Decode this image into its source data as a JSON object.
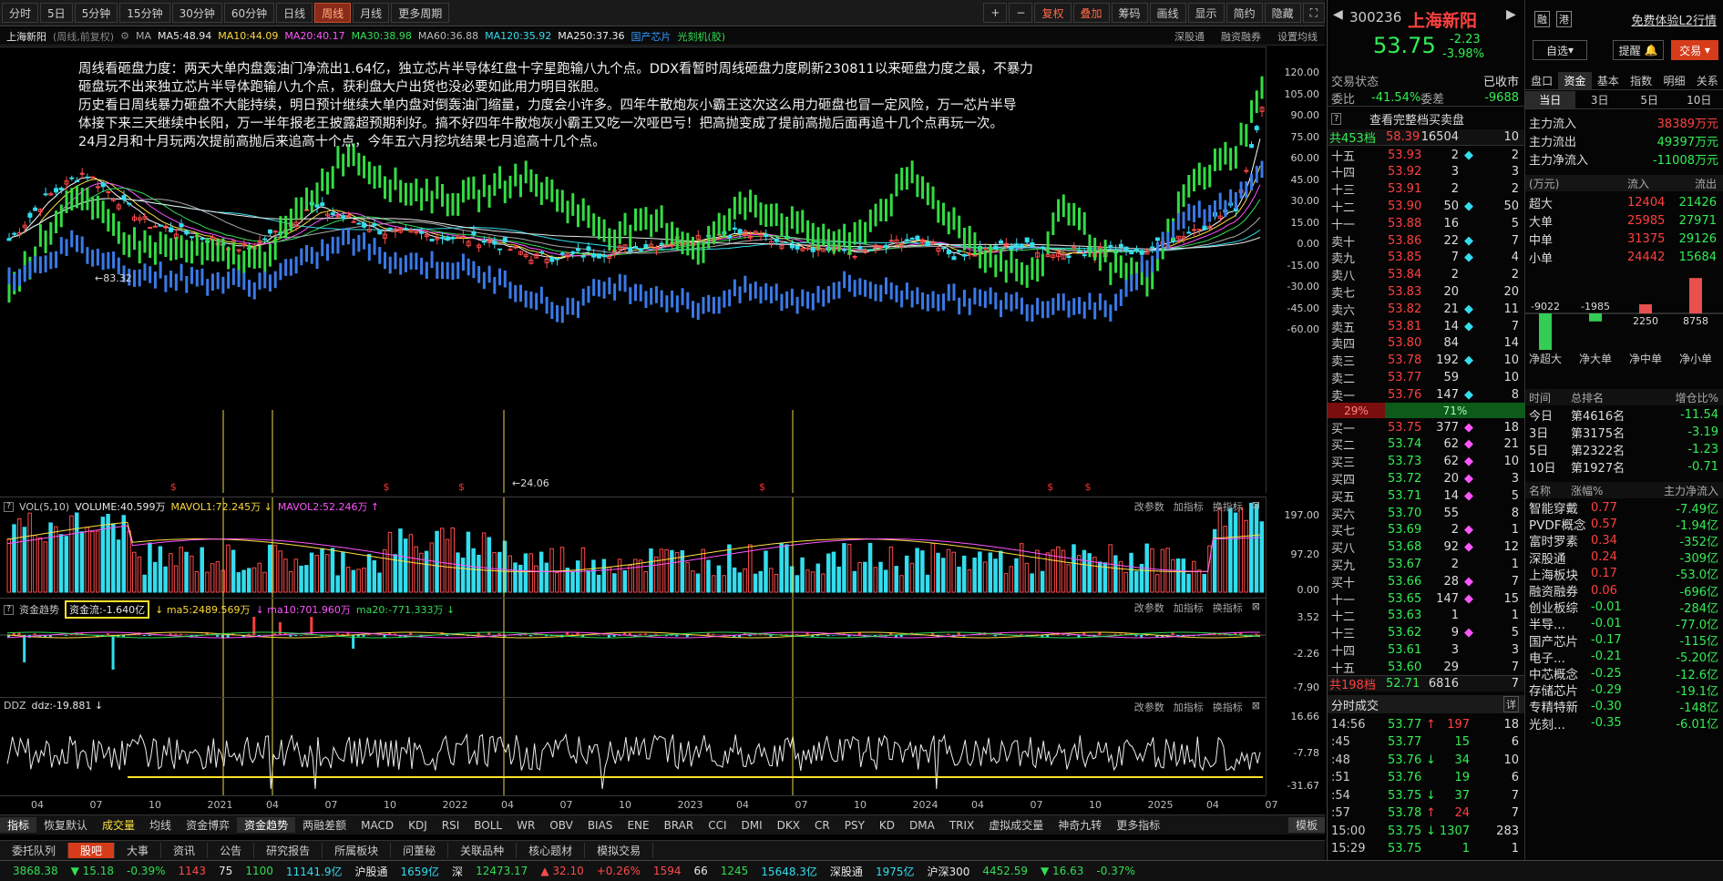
{
  "toolbar": {
    "periods": [
      "分时",
      "5日",
      "5分钟",
      "15分钟",
      "30分钟",
      "60分钟",
      "日线",
      "周线",
      "月线",
      "更多周期"
    ],
    "active": "周线",
    "right": [
      "+",
      "−",
      "复权",
      "叠加",
      "筹码",
      "画线",
      "显示",
      "简约",
      "隐藏",
      "⛶"
    ],
    "active_right": [
      "复权",
      "叠加"
    ]
  },
  "info": {
    "name": "上海新阳",
    "mode": "(周线,前复权)",
    "ma": "MA",
    "ma5": "MA5:48.94",
    "ma10": "MA10:44.09",
    "ma20": "MA20:40.17",
    "ma30": "MA30:38.98",
    "ma60": "MA60:36.88",
    "ma120": "MA120:35.92",
    "ma250": "MA250:37.36",
    "tag1": "国产芯片",
    "tag2": "光刻机(胶)",
    "right": [
      "深股通",
      "融资融券",
      "设置均线"
    ]
  },
  "annotation": [
    "周线看砸盘力度：两天大单内盘轰油门净流出1.64亿，独立芯片半导体红盘十字星跑输八九个点。DDX看暂时周线砸盘力度刷新230811以来砸盘力度之最，不暴力",
    "砸盘玩不出来独立芯片半导体跑输八九个点，获利盘大户出货也没必要如此用力明目张胆。",
    "历史看日周线暴力砸盘不大能持续，明日预计继续大单内盘对倒轰油门缩量，力度会小许多。四年牛散炮灰小霸王这次这么用力砸盘也冒一定风险，万一芯片半导",
    "体接下来三天继续中长阳，万一半年报老王披露超预期利好。搞不好四年牛散炮灰小霸王又吃一次哑巴亏！把高抛变成了提前高抛后面再追十几个点再玩一次。",
    "24月2月和十月玩两次提前高抛后来追高十个点，今年五六月挖坑结果七月追高十几个点。"
  ],
  "main_axis": [
    "120.00",
    "105.00",
    "90.00",
    "75.00",
    "60.00",
    "45.00",
    "30.00",
    "15.00",
    "0.00",
    "-15.00",
    "-30.00",
    "-45.00",
    "-60.00"
  ],
  "marks": {
    "high": "83.32",
    "low": "24.06"
  },
  "vol": {
    "name": "VOL(5,10)",
    "volume": "VOLUME:40.599万",
    "mavol1": "MAVOL1:72.245万",
    "mavol2": "MAVOL2:52.246万",
    "axis": [
      "197.00",
      "97.20",
      "0.00"
    ]
  },
  "fund": {
    "name": "资金趋势",
    "flow": "资金流:-1.640亿",
    "ma5": "ma5:2489.569万",
    "ma10": "ma10:701.960万",
    "ma20": "ma20:-771.333万",
    "axis": [
      "3.52",
      "-2.26",
      "-7.90"
    ]
  },
  "ddz": {
    "name": "DDZ",
    "value": "ddz:-19.881",
    "axis": [
      "16.66",
      "-7.78",
      "-31.67"
    ]
  },
  "panel_btns": [
    "改参数",
    "加指标",
    "换指标"
  ],
  "xaxis": [
    "04",
    "07",
    "10",
    "2021",
    "04",
    "07",
    "10",
    "2022",
    "04",
    "07",
    "10",
    "2023",
    "04",
    "07",
    "10",
    "2024",
    "04",
    "07",
    "10",
    "2025",
    "04",
    "07"
  ],
  "ind_tabs": [
    "指标",
    "恢复默认",
    "成交量",
    "均线",
    "资金博弈",
    "资金趋势",
    "两融差额",
    "MACD",
    "KDJ",
    "RSI",
    "BOLL",
    "WR",
    "OBV",
    "BIAS",
    "ENE",
    "BRAR",
    "CCI",
    "DMI",
    "DKX",
    "CR",
    "PSY",
    "KD",
    "DMA",
    "TRIX",
    "虚拟成交量",
    "神奇九转",
    "更多指标",
    "模板"
  ],
  "bottom_tabs": [
    "委托队列",
    "股吧",
    "大事",
    "资讯",
    "公告",
    "研究报告",
    "所属板块",
    "问董秘",
    "关联品种",
    "核心题材",
    "模拟交易"
  ],
  "status": {
    "sh": "3868.38",
    "sh_chg": "▼ 15.18",
    "sh_pct": "-0.39%",
    "n1": "1143",
    "n2": "75",
    "n3": "1100",
    "amt": "11141.9亿",
    "hgt": "沪股通",
    "hgt_v": "1659亿",
    "sz": "深",
    "sz_v": "12473.17",
    "sz_chg": "▲ 32.10",
    "sz_pct": "+0.26%",
    "n4": "1594",
    "n5": "66",
    "n6": "1245",
    "sz_amt": "15648.3亿",
    "sgt": "深股通",
    "sgt_v": "1975亿",
    "hs": "沪深300",
    "hs_v": "4452.59",
    "hs_chg": "▼ 16.63",
    "hs_pct": "-0.37%"
  },
  "stock": {
    "code": "300236",
    "name": "上海新阳",
    "price": "53.75",
    "chg": "-2.23",
    "pct": "-3.98%",
    "promo": "免费体验L2行情",
    "btns": [
      "融",
      "港"
    ],
    "zixuan": "自选",
    "remind": "提醒",
    "trade": "交易"
  },
  "trade_state": {
    "label": "交易状态",
    "value": "已收市",
    "wb": "委比",
    "wb_v": "-41.54%",
    "wc": "委差",
    "wc_v": "-9688"
  },
  "view_all": "查看完整档买卖盘",
  "sell_total": {
    "label": "共453档",
    "price": "58.39",
    "vol": "16504",
    "n": "10"
  },
  "asks": [
    [
      "十五",
      "53.93",
      "2",
      "2"
    ],
    [
      "十四",
      "53.92",
      "3",
      "3"
    ],
    [
      "十三",
      "53.91",
      "2",
      "2"
    ],
    [
      "十二",
      "53.90",
      "50",
      "50"
    ],
    [
      "十一",
      "53.88",
      "16",
      "5"
    ],
    [
      "卖十",
      "53.86",
      "22",
      "7"
    ],
    [
      "卖九",
      "53.85",
      "7",
      "4"
    ],
    [
      "卖八",
      "53.84",
      "2",
      "2"
    ],
    [
      "卖七",
      "53.83",
      "20",
      "20"
    ],
    [
      "卖六",
      "53.82",
      "21",
      "11"
    ],
    [
      "卖五",
      "53.81",
      "14",
      "7"
    ],
    [
      "卖四",
      "53.80",
      "84",
      "14"
    ],
    [
      "卖三",
      "53.78",
      "192",
      "10"
    ],
    [
      "卖二",
      "53.77",
      "59",
      "10"
    ],
    [
      "卖一",
      "53.76",
      "147",
      "8"
    ]
  ],
  "ratio": {
    "sell": "29%",
    "buy": "71%"
  },
  "bids": [
    [
      "买一",
      "53.75",
      "377",
      "18"
    ],
    [
      "买二",
      "53.74",
      "62",
      "21"
    ],
    [
      "买三",
      "53.73",
      "62",
      "10"
    ],
    [
      "买四",
      "53.72",
      "20",
      "3"
    ],
    [
      "买五",
      "53.71",
      "14",
      "5"
    ],
    [
      "买六",
      "53.70",
      "55",
      "8"
    ],
    [
      "买七",
      "53.69",
      "2",
      "1"
    ],
    [
      "买八",
      "53.68",
      "92",
      "12"
    ],
    [
      "买九",
      "53.67",
      "2",
      "1"
    ],
    [
      "买十",
      "53.66",
      "28",
      "7"
    ],
    [
      "十一",
      "53.65",
      "147",
      "15"
    ],
    [
      "十二",
      "53.63",
      "1",
      "1"
    ],
    [
      "十三",
      "53.62",
      "9",
      "5"
    ],
    [
      "十四",
      "53.61",
      "3",
      "3"
    ],
    [
      "十五",
      "53.60",
      "29",
      "7"
    ]
  ],
  "buy_total": {
    "label": "共198档",
    "price": "52.71",
    "vol": "6816",
    "n": "7"
  },
  "ticks_title": "分时成交",
  "ticks_btn": "详",
  "ticks": [
    [
      "14:56",
      "53.77",
      "197",
      "18",
      "up"
    ],
    [
      ":45",
      "53.77",
      "15",
      "6",
      ""
    ],
    [
      ":48",
      "53.76",
      "34",
      "10",
      "dn"
    ],
    [
      ":51",
      "53.76",
      "19",
      "6",
      ""
    ],
    [
      ":54",
      "53.75",
      "37",
      "7",
      "dn"
    ],
    [
      ":57",
      "53.78",
      "24",
      "7",
      "up"
    ],
    [
      "15:00",
      "53.75",
      "1307",
      "283",
      "dn"
    ],
    [
      "15:29",
      "53.75",
      "1",
      "1",
      ""
    ]
  ],
  "rtabs1": [
    "盘口",
    "资金",
    "基本",
    "指数",
    "明细",
    "关系"
  ],
  "rtabs2": [
    "当日",
    "3日",
    "5日",
    "10日"
  ],
  "flows": [
    [
      "主力流入",
      "38389万元"
    ],
    [
      "主力流出",
      "49397万元"
    ],
    [
      "主力净流入",
      "-11008万元"
    ]
  ],
  "flow_table": {
    "unit": "(万元)",
    "in": "流入",
    "out": "流出",
    "rows": [
      [
        "超大",
        "12404",
        "21426"
      ],
      [
        "大单",
        "25985",
        "27971"
      ],
      [
        "中单",
        "31375",
        "29126"
      ],
      [
        "小单",
        "24442",
        "15684"
      ]
    ]
  },
  "net_chart": {
    "values": [
      -9022,
      -1985,
      2250,
      8758
    ],
    "labels": [
      "净超大",
      "净大单",
      "净中单",
      "净小单"
    ]
  },
  "rank": {
    "hdr": [
      "时间",
      "总排名",
      "增仓比%"
    ],
    "rows": [
      [
        "今日",
        "第4616名",
        "-11.54"
      ],
      [
        "3日",
        "第3175名",
        "-3.19"
      ],
      [
        "5日",
        "第2322名",
        "-1.23"
      ],
      [
        "10日",
        "第1927名",
        "-0.71"
      ]
    ]
  },
  "sectors": {
    "hdr": [
      "名称",
      "涨幅%",
      "主力净流入"
    ],
    "rows": [
      [
        "智能穿戴",
        "0.77",
        "-7.49亿"
      ],
      [
        "PVDF概念",
        "0.57",
        "-1.94亿"
      ],
      [
        "富时罗素",
        "0.34",
        "-352亿"
      ],
      [
        "深股通",
        "0.24",
        "-309亿"
      ],
      [
        "上海板块",
        "0.17",
        "-53.0亿"
      ],
      [
        "融资融券",
        "0.06",
        "-696亿"
      ],
      [
        "创业板综",
        "-0.01",
        "-284亿"
      ],
      [
        "半导...",
        "-0.01",
        "-77.0亿"
      ],
      [
        "国产芯片",
        "-0.17",
        "-115亿"
      ],
      [
        "电子...",
        "-0.21",
        "-5.20亿"
      ],
      [
        "中芯概念",
        "-0.25",
        "-12.6亿"
      ],
      [
        "存储芯片",
        "-0.29",
        "-19.1亿"
      ],
      [
        "专精特新",
        "-0.30",
        "-148亿"
      ],
      [
        "光刻...",
        "-0.35",
        "-6.01亿"
      ]
    ]
  }
}
